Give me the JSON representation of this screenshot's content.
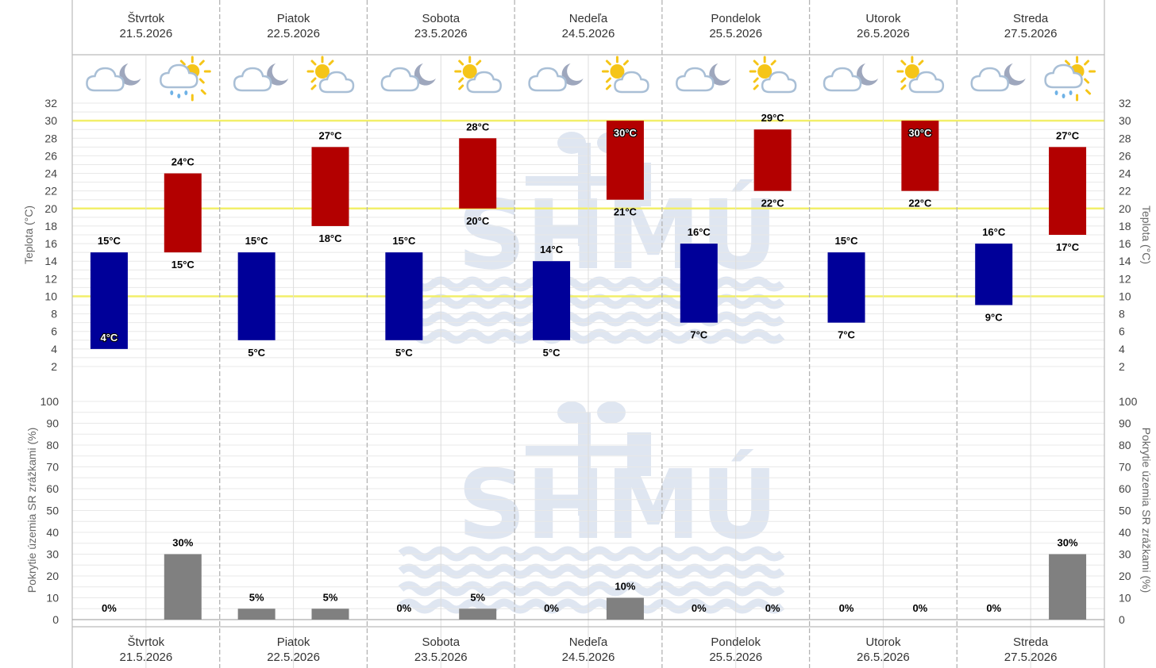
{
  "days": [
    {
      "name": "Štvrtok",
      "date": "21.5.2026"
    },
    {
      "name": "Piatok",
      "date": "22.5.2026"
    },
    {
      "name": "Sobota",
      "date": "23.5.2026"
    },
    {
      "name": "Nedeľa",
      "date": "24.5.2026"
    },
    {
      "name": "Pondelok",
      "date": "25.5.2026"
    },
    {
      "name": "Utorok",
      "date": "26.5.2026"
    },
    {
      "name": "Streda",
      "date": "27.5.2026"
    }
  ],
  "icons": {
    "night": [
      "cloud-moon-icon",
      "cloud-moon-icon",
      "cloud-moon-icon",
      "cloud-moon-icon",
      "cloud-moon-icon",
      "cloud-moon-icon",
      "cloud-moon-icon"
    ],
    "day": [
      "sun-cloud-rain-icon",
      "sun-cloud-icon",
      "sun-cloud-icon",
      "sun-cloud-icon",
      "sun-cloud-icon",
      "sun-cloud-icon",
      "sun-cloud-rain-icon"
    ]
  },
  "watermark": "SHMÚ",
  "colors": {
    "night_bar": "#000099",
    "day_bar": "#b30000",
    "precip_bar": "#808080",
    "threshold_line": "#f2ef6a"
  },
  "chart_data": [
    {
      "type": "bar",
      "name": "temperature",
      "ylabel": "Teplota (°C)",
      "ylim": [
        2,
        32
      ],
      "yticks": [
        2,
        4,
        6,
        8,
        10,
        12,
        14,
        16,
        18,
        20,
        22,
        24,
        26,
        28,
        30,
        32
      ],
      "threshold_lines": [
        10,
        20,
        30
      ],
      "categories": [
        "21.5.2026",
        "22.5.2026",
        "23.5.2026",
        "24.5.2026",
        "25.5.2026",
        "26.5.2026",
        "27.5.2026"
      ],
      "night": [
        {
          "low": 4,
          "high": 15
        },
        {
          "low": 5,
          "high": 15
        },
        {
          "low": 5,
          "high": 15
        },
        {
          "low": 5,
          "high": 14
        },
        {
          "low": 7,
          "high": 16
        },
        {
          "low": 7,
          "high": 15
        },
        {
          "low": 9,
          "high": 16
        }
      ],
      "day": [
        {
          "low": 15,
          "high": 24
        },
        {
          "low": 18,
          "high": 27
        },
        {
          "low": 20,
          "high": 28
        },
        {
          "low": 21,
          "high": 30
        },
        {
          "low": 22,
          "high": 29
        },
        {
          "low": 22,
          "high": 30
        },
        {
          "low": 17,
          "high": 27
        }
      ],
      "night_labels": [
        {
          "low": "4°C",
          "high": "15°C"
        },
        {
          "low": "5°C",
          "high": "15°C"
        },
        {
          "low": "5°C",
          "high": "15°C"
        },
        {
          "low": "5°C",
          "high": "14°C"
        },
        {
          "low": "7°C",
          "high": "16°C"
        },
        {
          "low": "7°C",
          "high": "15°C"
        },
        {
          "low": "9°C",
          "high": "16°C"
        }
      ],
      "day_labels": [
        {
          "low": "15°C",
          "high": "24°C"
        },
        {
          "low": "18°C",
          "high": "27°C"
        },
        {
          "low": "20°C",
          "high": "28°C"
        },
        {
          "low": "21°C",
          "high": "30°C"
        },
        {
          "low": "22°C",
          "high": "29°C"
        },
        {
          "low": "22°C",
          "high": "30°C"
        },
        {
          "low": "17°C",
          "high": "27°C"
        }
      ]
    },
    {
      "type": "bar",
      "name": "precipitation",
      "ylabel": "Pokrytie územia SR zrážkami (%)",
      "ylim": [
        0,
        100
      ],
      "yticks": [
        0,
        10,
        20,
        30,
        40,
        50,
        60,
        70,
        80,
        90,
        100
      ],
      "categories": [
        "21.5.2026",
        "22.5.2026",
        "23.5.2026",
        "24.5.2026",
        "25.5.2026",
        "26.5.2026",
        "27.5.2026"
      ],
      "night": [
        0,
        5,
        0,
        0,
        0,
        0,
        0
      ],
      "day": [
        30,
        5,
        5,
        10,
        0,
        0,
        30
      ],
      "night_labels": [
        "0%",
        "5%",
        "0%",
        "0%",
        "0%",
        "0%",
        "0%"
      ],
      "day_labels": [
        "30%",
        "5%",
        "5%",
        "10%",
        "0%",
        "0%",
        "30%"
      ]
    }
  ]
}
